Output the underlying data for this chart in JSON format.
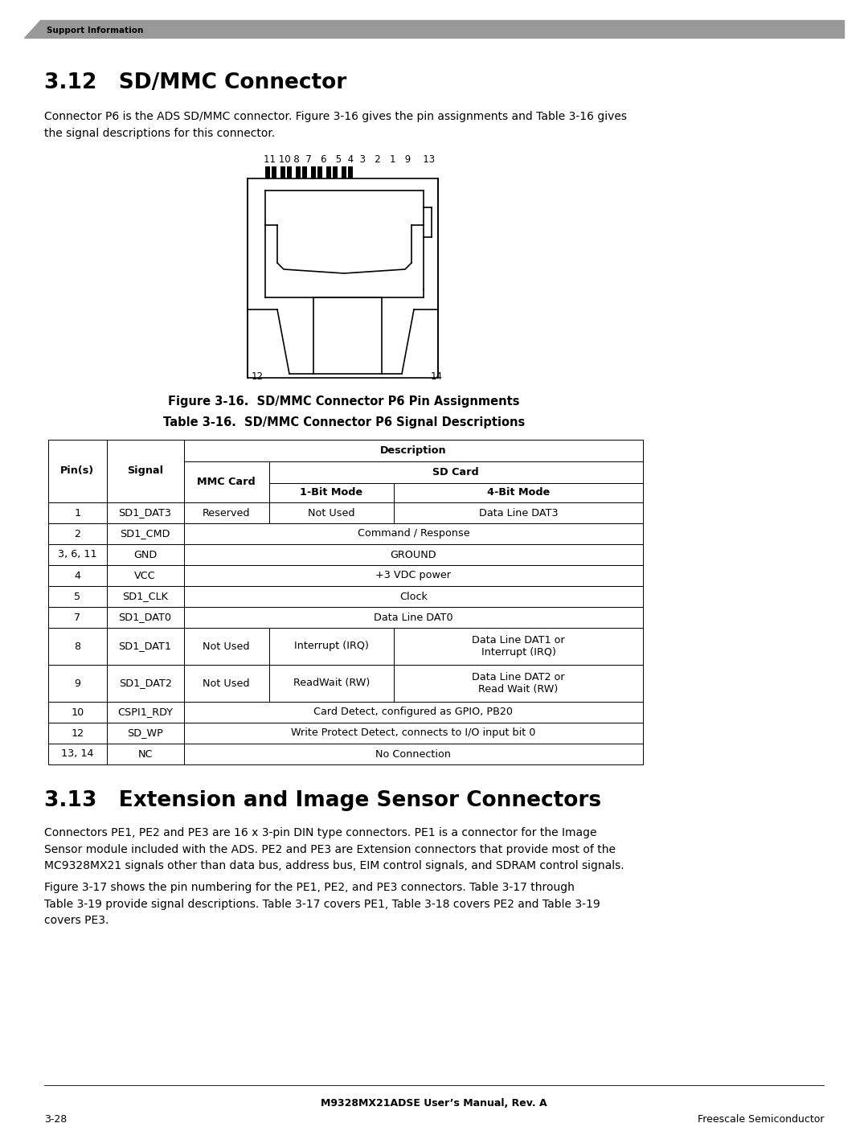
{
  "page_bg": "#ffffff",
  "header_bar_color": "#999999",
  "header_text": "Support Information",
  "section_312_title": "3.12   SD/MMC Connector",
  "section_312_body": "Connector P6 is the ADS SD/MMC connector. Figure 3-16 gives the pin assignments and Table 3-16 gives\nthe signal descriptions for this connector.",
  "figure_caption": "Figure 3-16.  SD/MMC Connector P6 Pin Assignments",
  "table_caption": "Table 3-16.  SD/MMC Connector P6 Signal Descriptions",
  "section_313_title": "3.13   Extension and Image Sensor Connectors",
  "section_313_body1": "Connectors PE1, PE2 and PE3 are 16 x 3-pin DIN type connectors. PE1 is a connector for the Image\nSensor module included with the ADS. PE2 and PE3 are Extension connectors that provide most of the\nMC9328MX21 signals other than data bus, address bus, EIM control signals, and SDRAM control signals.",
  "section_313_body2": "Figure 3-17 shows the pin numbering for the PE1, PE2, and PE3 connectors. Table 3-17 through\nTable 3-19 provide signal descriptions. Table 3-17 covers PE1, Table 3-18 covers PE2 and Table 3-19\ncovers PE3.",
  "footer_center": "M9328MX21ADSE User’s Manual, Rev. A",
  "footer_left": "3-28",
  "footer_right": "Freescale Semiconductor",
  "table_rows": [
    [
      "1",
      "SD1_DAT3",
      "Reserved",
      "Not Used",
      "Data Line DAT3"
    ],
    [
      "2",
      "SD1_CMD",
      "",
      "Command / Response",
      ""
    ],
    [
      "3, 6, 11",
      "GND",
      "",
      "GROUND",
      ""
    ],
    [
      "4",
      "VCC",
      "",
      "+3 VDC power",
      ""
    ],
    [
      "5",
      "SD1_CLK",
      "",
      "Clock",
      ""
    ],
    [
      "7",
      "SD1_DAT0",
      "",
      "Data Line DAT0",
      ""
    ],
    [
      "8",
      "SD1_DAT1",
      "Not Used",
      "Interrupt (IRQ)",
      "Data Line DAT1 or\nInterrupt (IRQ)"
    ],
    [
      "9",
      "SD1_DAT2",
      "Not Used",
      "ReadWait (RW)",
      "Data Line DAT2 or\nRead Wait (RW)"
    ],
    [
      "10",
      "CSPI1_RDY",
      "",
      "Card Detect, configured as GPIO, PB20",
      ""
    ],
    [
      "12",
      "SD_WP",
      "",
      "Write Protect Detect, connects to I/O input bit 0",
      ""
    ],
    [
      "13, 14",
      "NC",
      "",
      "No Connection",
      ""
    ]
  ]
}
